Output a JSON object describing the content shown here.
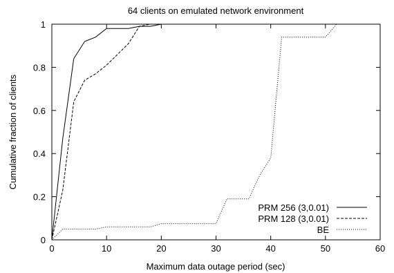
{
  "chart_data": {
    "type": "line",
    "title": "64 clients on emulated network environment",
    "xlabel": "Maximum data outage period (sec)",
    "ylabel": "Cumulative fraction of clients",
    "xlim": [
      0,
      60
    ],
    "ylim": [
      0,
      1
    ],
    "x_ticks": [
      "0",
      "10",
      "20",
      "30",
      "40",
      "50",
      "60"
    ],
    "y_ticks": [
      "0",
      "0.2",
      "0.4",
      "0.6",
      "0.8",
      "1"
    ],
    "grid": false,
    "legend": "bottom-right",
    "series": [
      {
        "name": "PRM 256 (3,0.01)",
        "style": "solid",
        "points": [
          [
            0,
            0
          ],
          [
            2,
            0.47
          ],
          [
            4,
            0.84
          ],
          [
            6,
            0.92
          ],
          [
            8,
            0.94
          ],
          [
            10,
            0.98
          ],
          [
            12,
            0.98
          ],
          [
            14,
            0.98
          ],
          [
            16,
            0.99
          ],
          [
            18,
            0.99
          ],
          [
            20,
            1
          ],
          [
            60,
            1
          ]
        ]
      },
      {
        "name": "PRM 128 (3,0.01)",
        "style": "dashed",
        "points": [
          [
            0,
            0
          ],
          [
            2,
            0.23
          ],
          [
            4,
            0.64
          ],
          [
            6,
            0.74
          ],
          [
            8,
            0.77
          ],
          [
            10,
            0.81
          ],
          [
            12,
            0.86
          ],
          [
            14,
            0.91
          ],
          [
            16,
            0.99
          ],
          [
            18,
            1
          ],
          [
            60,
            1
          ]
        ]
      },
      {
        "name": "BE",
        "style": "dotted",
        "points": [
          [
            0,
            0
          ],
          [
            2,
            0.05
          ],
          [
            8,
            0.05
          ],
          [
            10,
            0.06
          ],
          [
            18,
            0.06
          ],
          [
            20,
            0.075
          ],
          [
            30,
            0.075
          ],
          [
            32,
            0.19
          ],
          [
            36,
            0.19
          ],
          [
            38,
            0.3
          ],
          [
            40,
            0.38
          ],
          [
            42,
            0.94
          ],
          [
            50,
            0.94
          ],
          [
            52,
            1
          ],
          [
            60,
            1
          ]
        ]
      }
    ]
  }
}
